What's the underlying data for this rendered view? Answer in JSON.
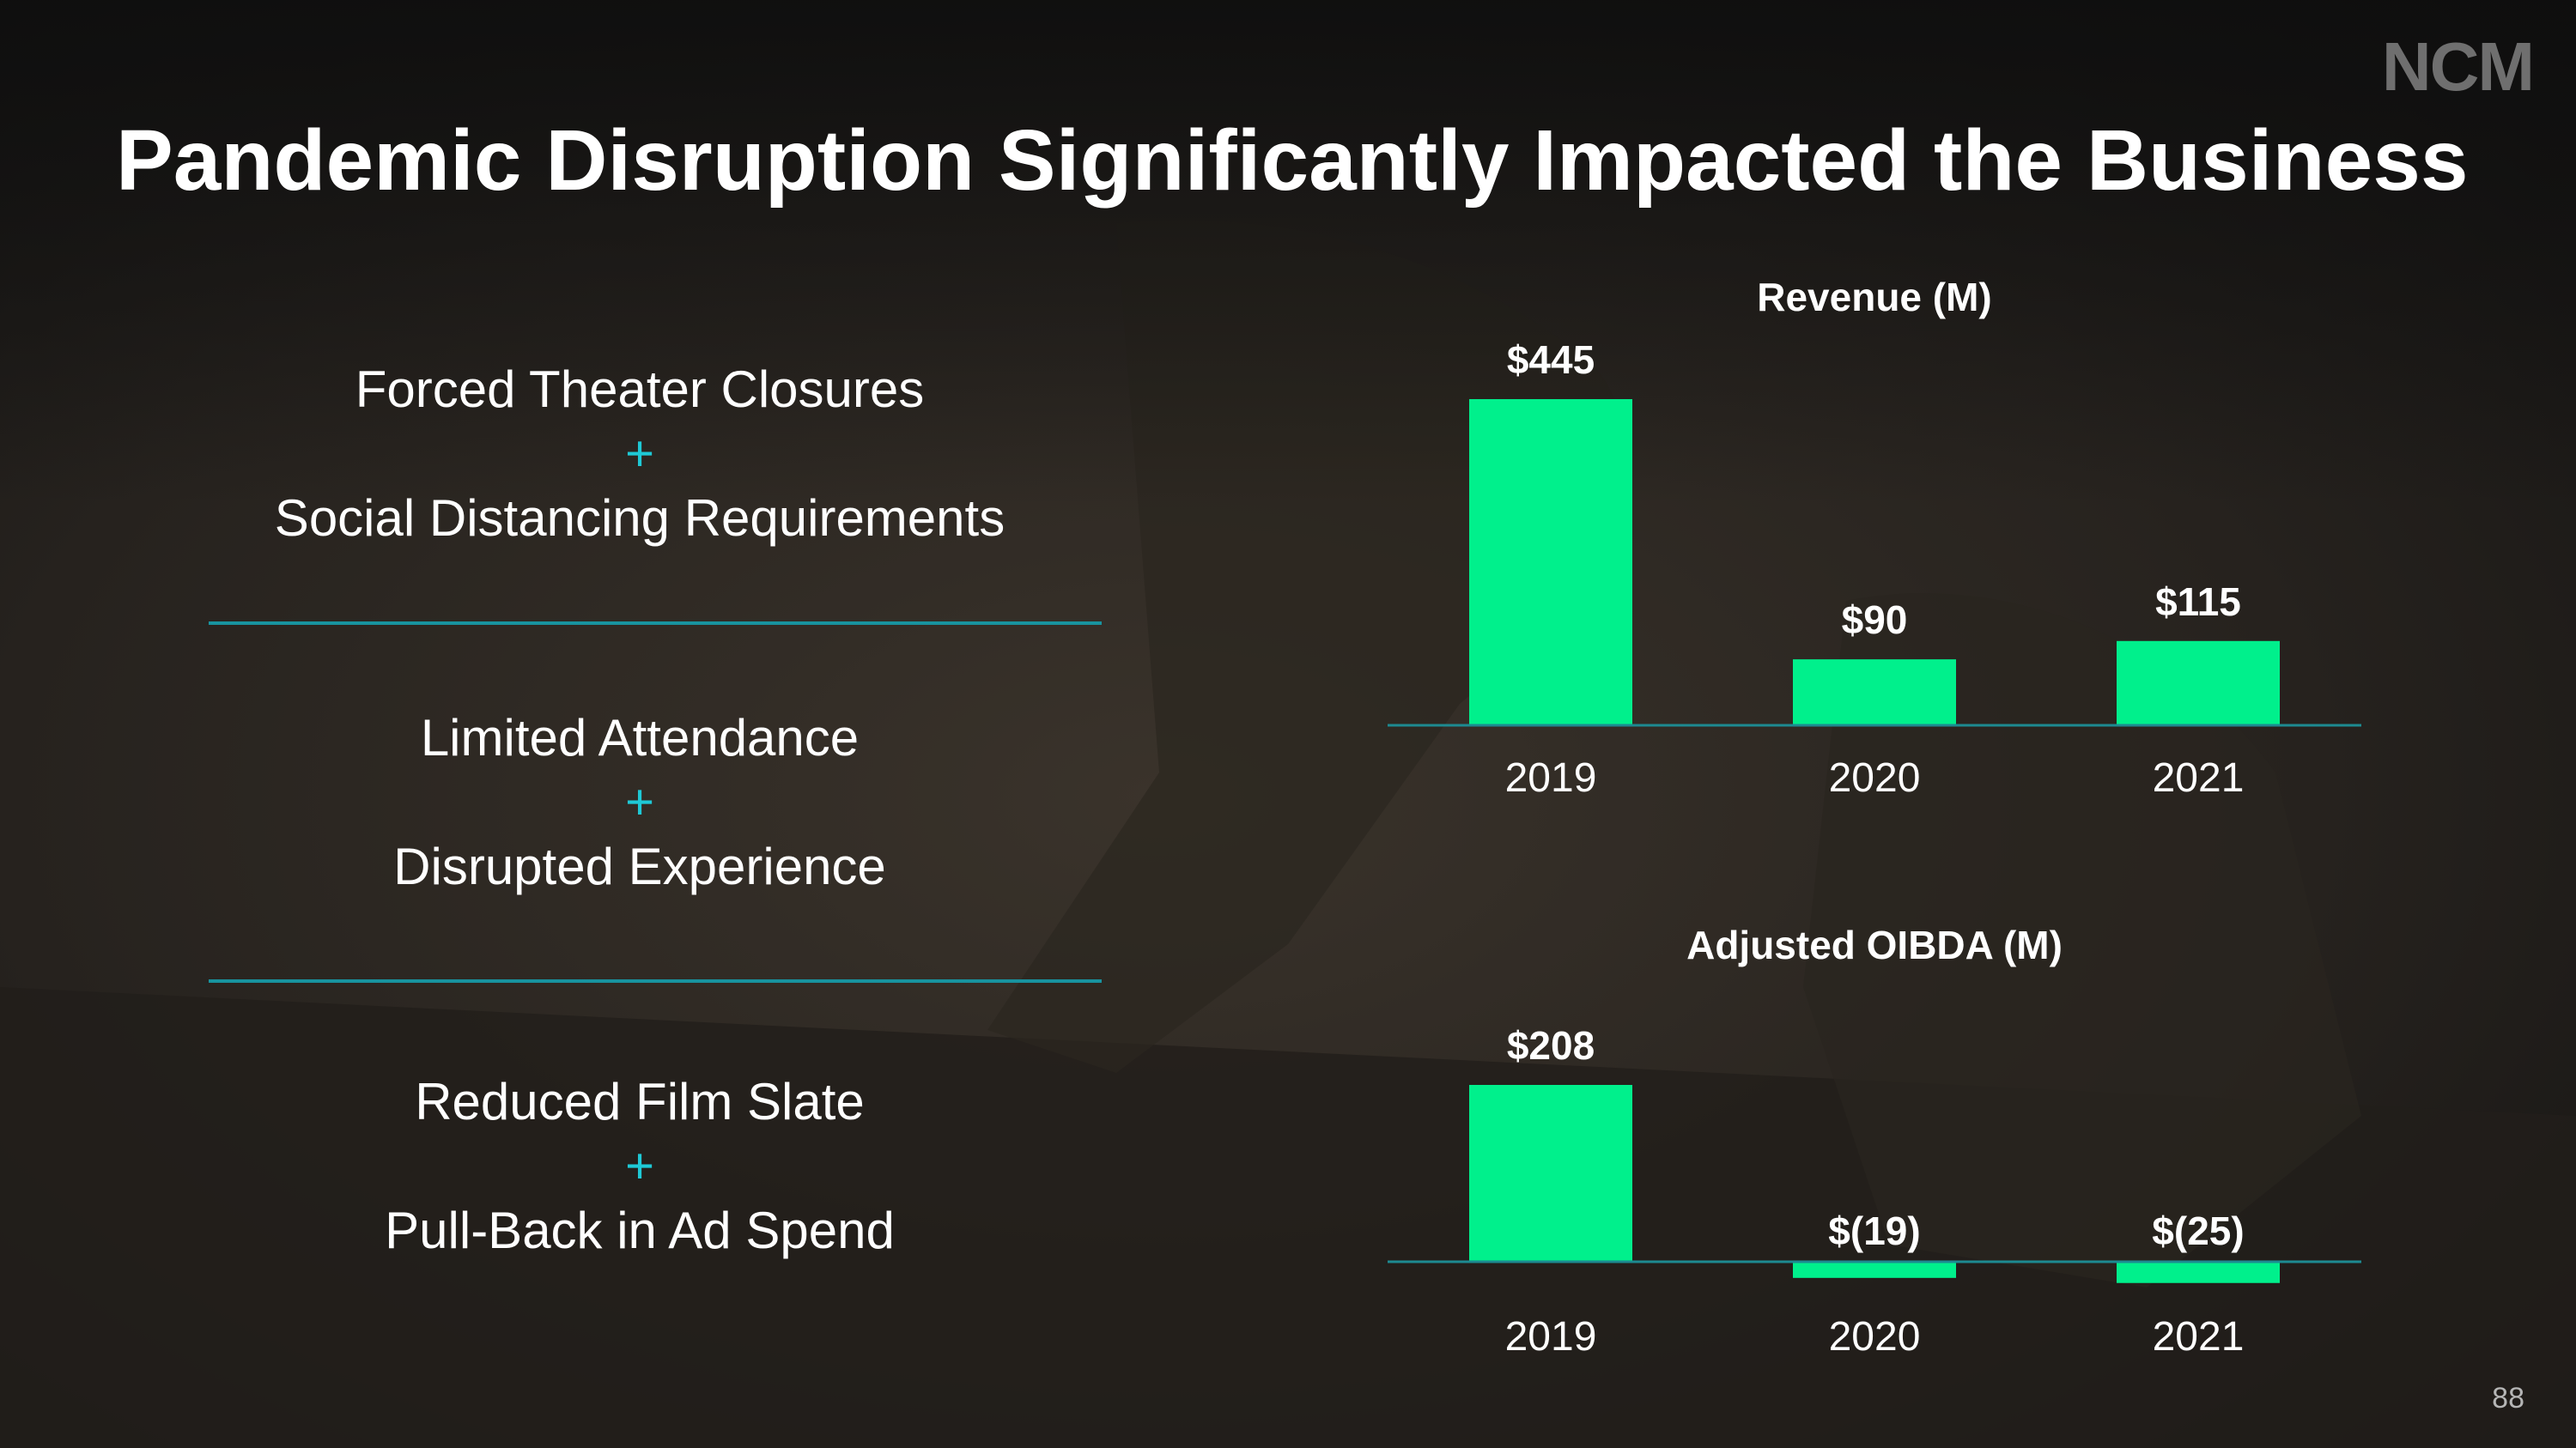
{
  "header": {
    "logo": "NCM",
    "title": "Pandemic Disruption Significantly Impacted the Business"
  },
  "bullets": [
    {
      "line1": "Forced Theater Closures",
      "plus": "+",
      "line2": "Social Distancing Requirements"
    },
    {
      "line1": "Limited Attendance",
      "plus": "+",
      "line2": "Disrupted Experience"
    },
    {
      "line1": "Reduced Film Slate",
      "plus": "+",
      "line2": "Pull-Back in Ad Spend"
    }
  ],
  "chart_data": [
    {
      "type": "bar",
      "title": "Revenue (M)",
      "categories": [
        "2019",
        "2020",
        "2021"
      ],
      "values": [
        445,
        90,
        115
      ],
      "labels": [
        "$445",
        "$90",
        "$115"
      ],
      "xlabel": "",
      "ylabel": "",
      "grid": false,
      "legend": "none",
      "color": "#00f08c",
      "baseline_color": "#1d8a91"
    },
    {
      "type": "bar",
      "title": "Adjusted OIBDA (M)",
      "categories": [
        "2019",
        "2020",
        "2021"
      ],
      "values": [
        208,
        -19,
        -25
      ],
      "labels": [
        "$208",
        "$(19)",
        "$(25)"
      ],
      "xlabel": "",
      "ylabel": "",
      "grid": false,
      "legend": "none",
      "color": "#00f08c",
      "baseline_color": "#1d8a91"
    }
  ],
  "footer": {
    "page_number": "88"
  }
}
